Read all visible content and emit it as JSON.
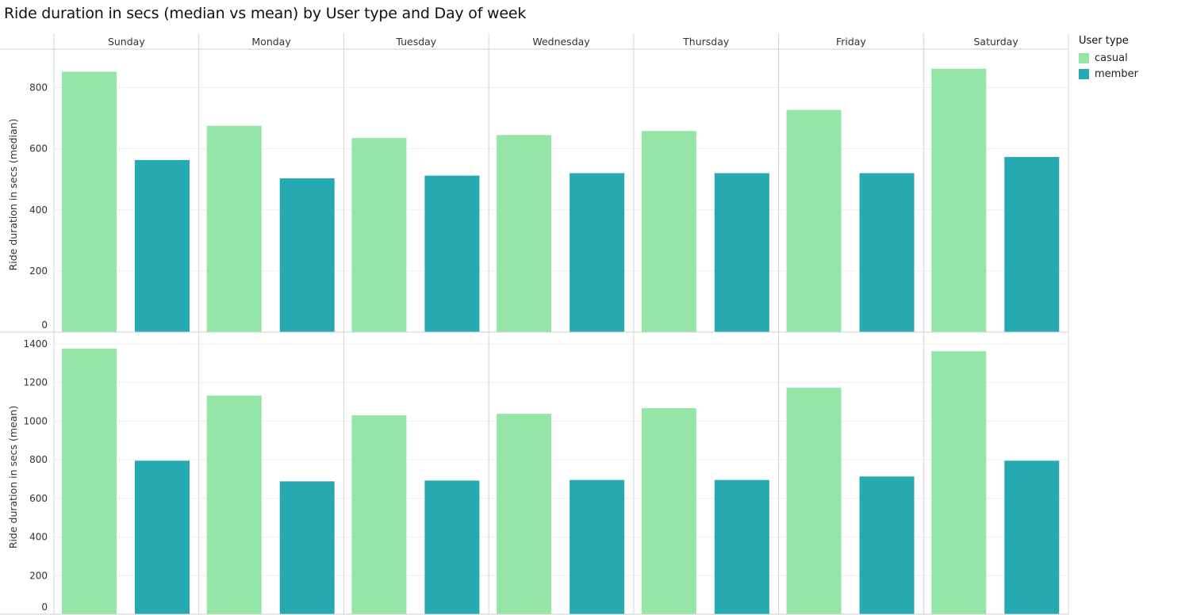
{
  "title": "Ride duration in secs (median vs mean) by User type and Day of week",
  "legend": {
    "title": "User type",
    "items": [
      {
        "label": "casual",
        "color": "#95e5a7"
      },
      {
        "label": "member",
        "color": "#26a9b0"
      }
    ]
  },
  "chart_data": {
    "type": "bar",
    "layout": "faceted grid (rows = measure, columns = day of week)",
    "categories": [
      "Sunday",
      "Monday",
      "Tuesday",
      "Wednesday",
      "Thursday",
      "Friday",
      "Saturday"
    ],
    "series_names": [
      "casual",
      "member"
    ],
    "colors": {
      "casual": "#95e5a7",
      "member": "#26a9b0"
    },
    "panels": [
      {
        "ylabel": "Ride duration in secs (median)",
        "ylim": [
          0,
          900
        ],
        "yticks": [
          0,
          200,
          400,
          600,
          800
        ],
        "series": [
          {
            "name": "casual",
            "values": [
              852,
              675,
              635,
              645,
              658,
              727,
              862
            ]
          },
          {
            "name": "member",
            "values": [
              563,
              503,
              512,
              520,
              520,
              520,
              573
            ]
          }
        ]
      },
      {
        "ylabel": "Ride duration in secs (mean)",
        "ylim": [
          0,
          1420
        ],
        "yticks": [
          0,
          200,
          400,
          600,
          800,
          1000,
          1200,
          1400
        ],
        "series": [
          {
            "name": "casual",
            "values": [
              1375,
              1132,
              1030,
              1038,
              1067,
              1173,
              1362
            ]
          },
          {
            "name": "member",
            "values": [
              795,
              688,
              692,
              695,
              695,
              713,
              795
            ]
          }
        ]
      }
    ],
    "grid": true,
    "legend_position": "right"
  }
}
